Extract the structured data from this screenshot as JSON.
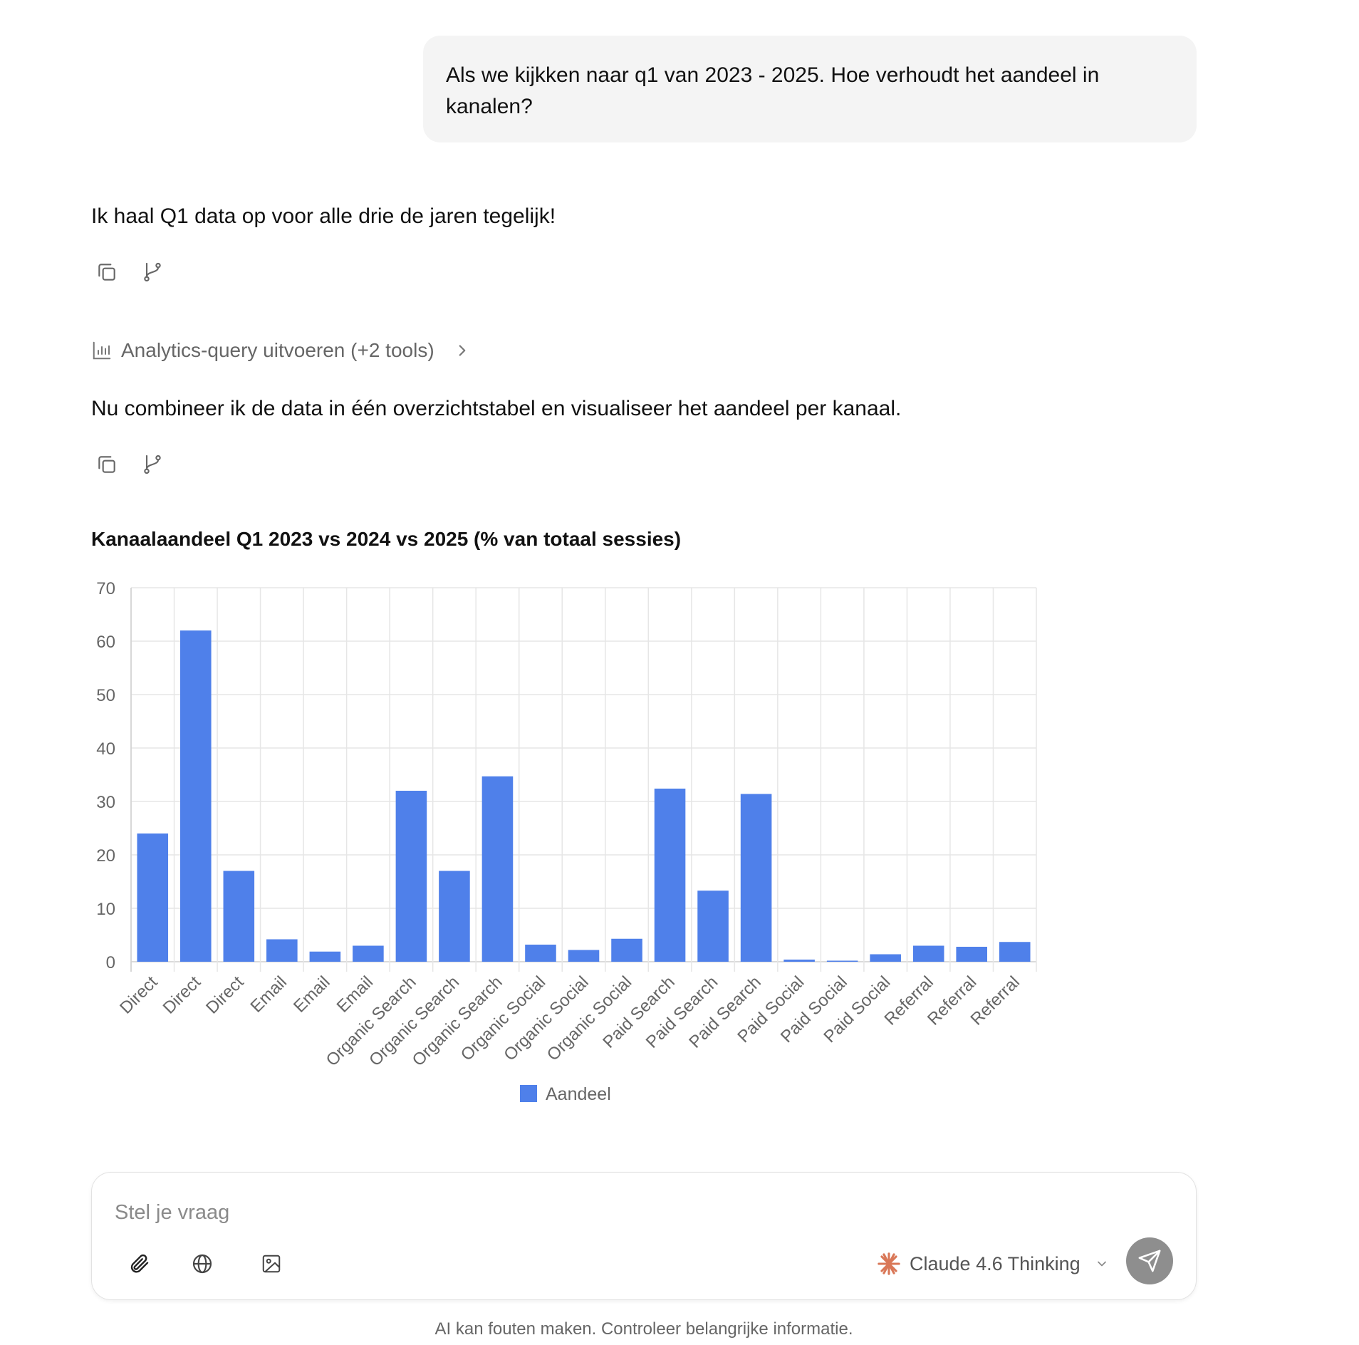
{
  "user_message": "Als we kijkken naar q1 van 2023 - 2025. Hoe verhoudt het aandeel in kanalen?",
  "assistant_messages": [
    "Ik haal Q1 data op voor alle drie de jaren tegelijk!",
    "Nu combineer ik de data in één overzichtstabel en visualiseer het aandeel per kanaal."
  ],
  "tool_call": {
    "label": "Analytics-query uitvoeren (+2 tools)",
    "icon": "bar-chart-icon"
  },
  "chart_data": {
    "type": "bar",
    "title": "Kanaalaandeel Q1 2023 vs 2024 vs 2025 (% van totaal sessies)",
    "categories": [
      "Direct",
      "Direct",
      "Direct",
      "Email",
      "Email",
      "Email",
      "Organic Search",
      "Organic Search",
      "Organic Search",
      "Organic Social",
      "Organic Social",
      "Organic Social",
      "Paid Search",
      "Paid Search",
      "Paid Search",
      "Paid Social",
      "Paid Social",
      "Paid Social",
      "Referral",
      "Referral",
      "Referral"
    ],
    "series": [
      {
        "name": "Aandeel",
        "color": "#4f80ea",
        "values": [
          24,
          62,
          17,
          4.2,
          1.9,
          3.0,
          32,
          17,
          34.7,
          3.2,
          2.2,
          4.3,
          32.4,
          13.3,
          31.4,
          0.4,
          0.2,
          1.4,
          3.0,
          2.8,
          3.7
        ]
      }
    ],
    "ylim": [
      0,
      70
    ],
    "yticks": [
      0,
      10,
      20,
      30,
      40,
      50,
      60,
      70
    ],
    "grid": true,
    "legend_position": "bottom"
  },
  "composer": {
    "placeholder": "Stel je vraag",
    "model": "Claude 4.6 Thinking",
    "icons": [
      "paperclip-icon",
      "globe-icon",
      "image-icon",
      "send-icon"
    ]
  },
  "disclaimer": "AI kan fouten maken. Controleer belangrijke informatie.",
  "colors": {
    "accent": "#4f80ea",
    "send_button": "#8e8e8e",
    "bubble": "#f4f4f4"
  }
}
